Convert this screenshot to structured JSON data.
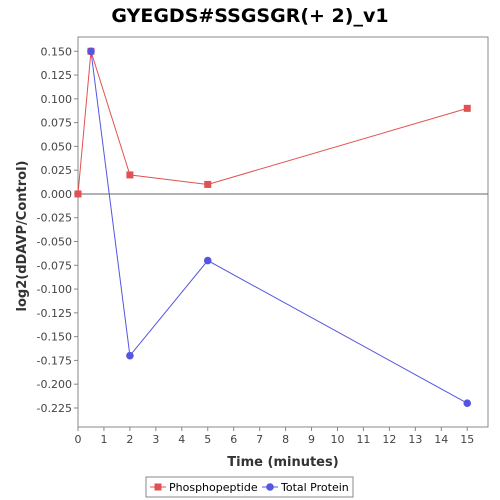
{
  "chart_data": {
    "type": "line",
    "title": "GYEGDS#SSGSGR(+ 2)_v1",
    "xlabel": "Time (minutes)",
    "ylabel": "log2(dDAVP/Control)",
    "xlim": [
      0,
      15.8
    ],
    "ylim": [
      -0.245,
      0.165
    ],
    "x_ticks": [
      0,
      1,
      2,
      3,
      4,
      5,
      6,
      7,
      8,
      9,
      10,
      11,
      12,
      13,
      14,
      15
    ],
    "y_ticks": [
      0.15,
      0.125,
      0.1,
      0.075,
      0.05,
      0.025,
      0.0,
      -0.025,
      -0.05,
      -0.075,
      -0.1,
      -0.125,
      -0.15,
      -0.175,
      -0.2,
      -0.225
    ],
    "y_tick_labels": [
      "0.150",
      "0.125",
      "0.100",
      "0.075",
      "0.050",
      "0.025",
      "0.000",
      "-0.025",
      "-0.050",
      "-0.075",
      "-0.100",
      "-0.125",
      "-0.150",
      "-0.175",
      "-0.200",
      "-0.225"
    ],
    "zero_line": true,
    "grid": false,
    "legend_position": "bottom-center",
    "series": [
      {
        "name": "Phosphopeptide",
        "color": "#e05252",
        "marker": "square",
        "x": [
          0,
          0.5,
          2,
          5,
          15
        ],
        "y": [
          0.0,
          0.15,
          0.02,
          0.01,
          0.09
        ]
      },
      {
        "name": "Total Protein",
        "color": "#5555e0",
        "marker": "circle",
        "x": [
          0.5,
          2,
          5,
          15
        ],
        "y": [
          0.15,
          -0.17,
          -0.07,
          -0.22
        ]
      }
    ]
  }
}
